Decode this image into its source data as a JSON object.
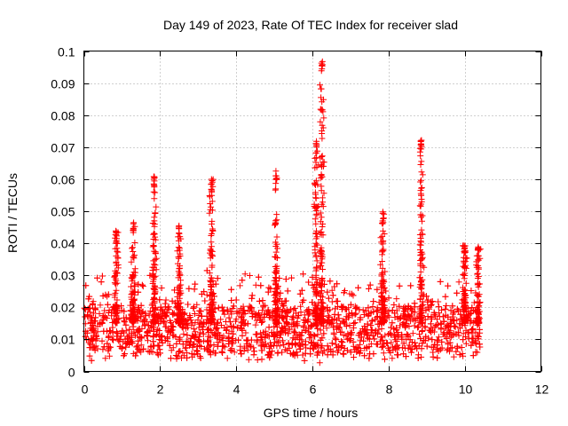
{
  "chart_data": {
    "type": "scatter",
    "title": "Day 149 of 2023, Rate Of TEC Index for receiver slad",
    "xlabel": "GPS time / hours",
    "ylabel": "ROTI / TECUs",
    "xlim": [
      0,
      12
    ],
    "ylim": [
      0,
      0.1
    ],
    "xticks": [
      "0",
      "2",
      "4",
      "6",
      "8",
      "10",
      "12"
    ],
    "yticks": [
      "0",
      "0.01",
      "0.02",
      "0.03",
      "0.04",
      "0.05",
      "0.06",
      "0.07",
      "0.08",
      "0.09",
      "0.1"
    ],
    "grid": true,
    "marker": "+",
    "series_color": "#ff0000",
    "x_data_range": [
      0.0,
      10.4
    ],
    "baseline_band": [
      0.005,
      0.02
    ],
    "peaks": [
      {
        "x": 0.85,
        "y": 0.044
      },
      {
        "x": 1.3,
        "y": 0.047
      },
      {
        "x": 1.85,
        "y": 0.061
      },
      {
        "x": 2.5,
        "y": 0.046
      },
      {
        "x": 3.35,
        "y": 0.06
      },
      {
        "x": 5.05,
        "y": 0.063
      },
      {
        "x": 6.1,
        "y": 0.072
      },
      {
        "x": 6.25,
        "y": 0.097
      },
      {
        "x": 7.85,
        "y": 0.05
      },
      {
        "x": 8.85,
        "y": 0.073
      },
      {
        "x": 10.0,
        "y": 0.04
      },
      {
        "x": 10.35,
        "y": 0.039
      }
    ]
  }
}
